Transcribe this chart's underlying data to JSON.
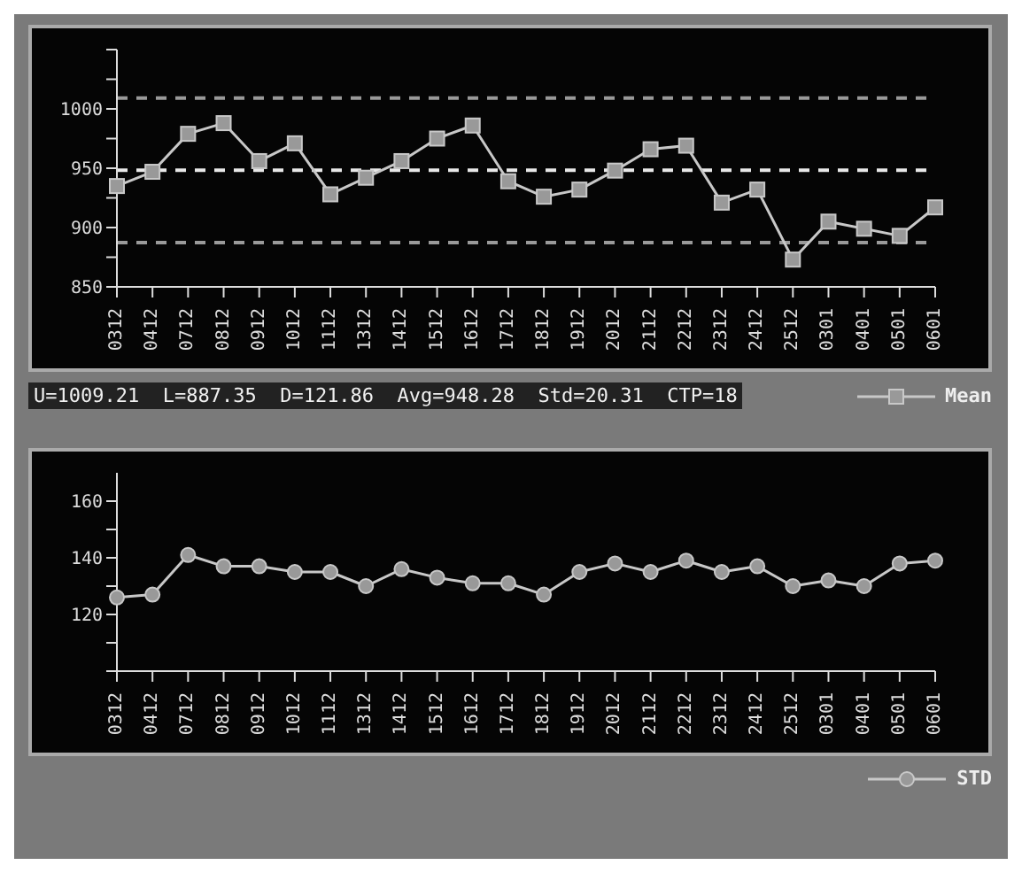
{
  "chart_data": [
    {
      "type": "line",
      "categories": [
        "0312",
        "0412",
        "0712",
        "0812",
        "0912",
        "1012",
        "1112",
        "1312",
        "1412",
        "1512",
        "1612",
        "1712",
        "1812",
        "1912",
        "2012",
        "2112",
        "2212",
        "2312",
        "2412",
        "2512",
        "0301",
        "0401",
        "0501",
        "0601"
      ],
      "series": [
        {
          "name": "Mean",
          "color": "#c8c8c8",
          "values": [
            935,
            947,
            979,
            988,
            956,
            971,
            928,
            942,
            956,
            975,
            986,
            939,
            926,
            932,
            948,
            966,
            969,
            921,
            932,
            873,
            905,
            899,
            893,
            917
          ]
        }
      ],
      "ylim": [
        850,
        1050
      ],
      "yticks": [
        850,
        {
          "value": 875,
          "label": null
        },
        900,
        {
          "value": 925,
          "label": null
        },
        950,
        {
          "value": 975,
          "label": null
        },
        1000,
        {
          "value": 1025,
          "label": null
        },
        {
          "value": 1050,
          "label": null
        }
      ],
      "ref_lines": [
        {
          "axis": "y",
          "value": 1009.21,
          "color": "#9a9a9a",
          "line_style": "dashed"
        },
        {
          "axis": "y",
          "value": 948.28,
          "color": "#e8e8e8",
          "line_style": "dashed"
        },
        {
          "axis": "y",
          "value": 887.35,
          "color": "#9a9a9a",
          "line_style": "dashed"
        }
      ],
      "annotations": [
        "U=1009.21  L=887.35  D=121.86  Avg=948.28  Std=20.31  CTP=18"
      ],
      "marker": "square",
      "line_style": "solid",
      "grid": false,
      "legend": "bottom right"
    },
    {
      "type": "line",
      "categories": [
        "0312",
        "0412",
        "0712",
        "0812",
        "0912",
        "1012",
        "1112",
        "1312",
        "1412",
        "1512",
        "1612",
        "1712",
        "1812",
        "1912",
        "2012",
        "2112",
        "2212",
        "2312",
        "2412",
        "2512",
        "0301",
        "0401",
        "0501",
        "0601"
      ],
      "series": [
        {
          "name": "STD",
          "color": "#c8c8c8",
          "values": [
            126,
            127,
            141,
            137,
            137,
            135,
            135,
            130,
            136,
            133,
            131,
            131,
            127,
            135,
            138,
            135,
            139,
            135,
            137,
            130,
            132,
            130,
            138,
            139
          ]
        }
      ],
      "ylim": [
        100,
        170
      ],
      "yticks": [
        {
          "value": 100,
          "label": null
        },
        {
          "value": 110,
          "label": null
        },
        120,
        {
          "value": 130,
          "label": null
        },
        140,
        {
          "value": 150,
          "label": null
        },
        160
      ],
      "marker": "circle",
      "line_style": "solid",
      "grid": false,
      "legend": "bottom right"
    }
  ]
}
